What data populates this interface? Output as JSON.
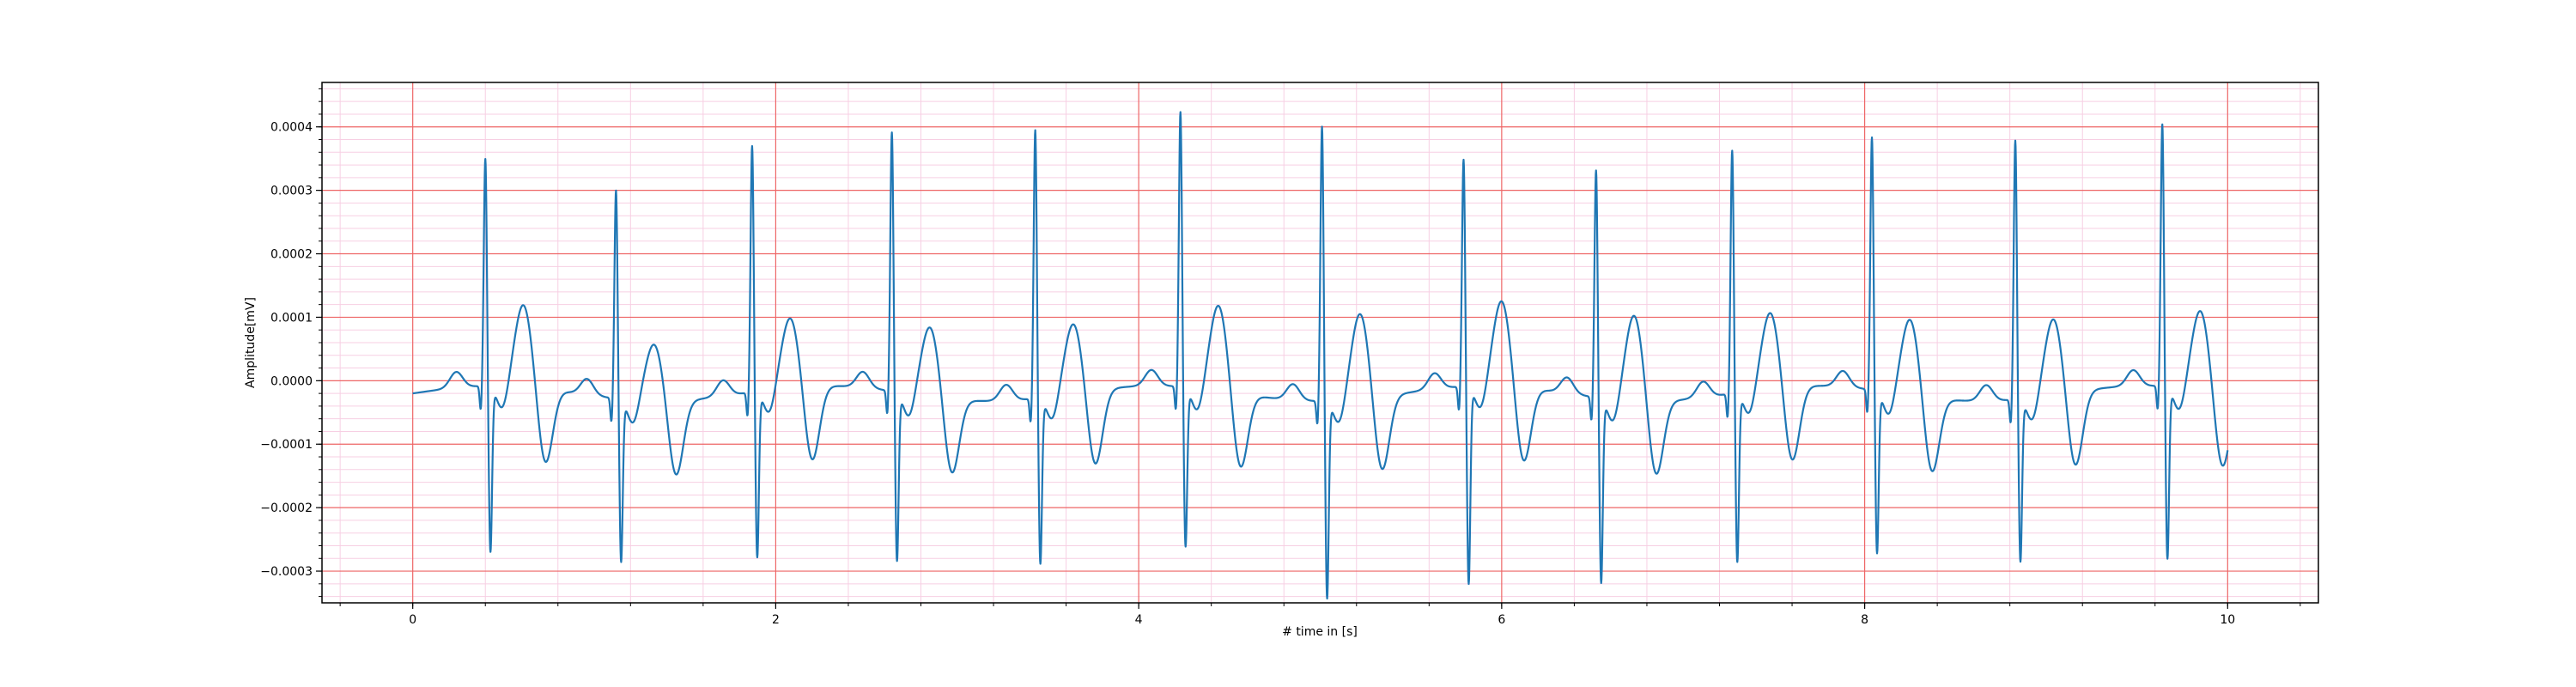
{
  "chart_data": {
    "type": "line",
    "title": "",
    "xlabel": "# time in [s]",
    "ylabel": "Amplitude[mV]",
    "xlim": [
      -0.5,
      10.5
    ],
    "ylim": [
      -0.00035,
      0.00047
    ],
    "xticks": [
      0,
      2,
      4,
      6,
      8,
      10
    ],
    "xtick_labels": [
      "0",
      "2",
      "4",
      "6",
      "8",
      "10"
    ],
    "yticks": [
      -0.0003,
      -0.0002,
      -0.0001,
      0.0,
      0.0001,
      0.0002,
      0.0003,
      0.0004
    ],
    "ytick_labels": [
      "−0.0003",
      "−0.0002",
      "−0.0001",
      "0.0000",
      "0.0001",
      "0.0002",
      "0.0003",
      "0.0004"
    ],
    "grid": {
      "major": true,
      "minor": true,
      "major_color": "#ee6666",
      "minor_color": "#f7cfe3"
    },
    "series_color": "#1f77b4",
    "beats": [
      {
        "r_time": 0.4,
        "r_amp": 0.00036,
        "s_amp": -0.00026,
        "t_amp": 0.00013
      },
      {
        "r_time": 1.12,
        "r_amp": 0.00033,
        "s_amp": -0.000255,
        "t_amp": 9e-05
      },
      {
        "r_time": 1.87,
        "r_amp": 0.00039,
        "s_amp": -0.00026,
        "t_amp": 0.00011
      },
      {
        "r_time": 2.64,
        "r_amp": 0.00041,
        "s_amp": -0.000265,
        "t_amp": 0.00011
      },
      {
        "r_time": 3.43,
        "r_amp": 0.000425,
        "s_amp": -0.00026,
        "t_amp": 0.00011
      },
      {
        "r_time": 4.23,
        "r_amp": 0.000435,
        "s_amp": -0.00025,
        "t_amp": 0.000135
      },
      {
        "r_time": 5.01,
        "r_amp": 0.000435,
        "s_amp": -0.00031,
        "t_amp": 0.000135
      },
      {
        "r_time": 5.79,
        "r_amp": 0.00036,
        "s_amp": -0.00031,
        "t_amp": 0.000135
      },
      {
        "r_time": 6.52,
        "r_amp": 0.00036,
        "s_amp": -0.00029,
        "t_amp": 0.000135
      },
      {
        "r_time": 7.27,
        "r_amp": 0.000385,
        "s_amp": -0.000265,
        "t_amp": 0.00012
      },
      {
        "r_time": 8.04,
        "r_amp": 0.0004,
        "s_amp": -0.000255,
        "t_amp": 0.00012
      },
      {
        "r_time": 8.83,
        "r_amp": 0.00041,
        "s_amp": -0.000255,
        "t_amp": 0.00012
      },
      {
        "r_time": 9.64,
        "r_amp": 0.000415,
        "s_amp": -0.00027,
        "t_amp": 0.000125
      }
    ],
    "x_start": 0.0,
    "x_end": 10.0
  }
}
